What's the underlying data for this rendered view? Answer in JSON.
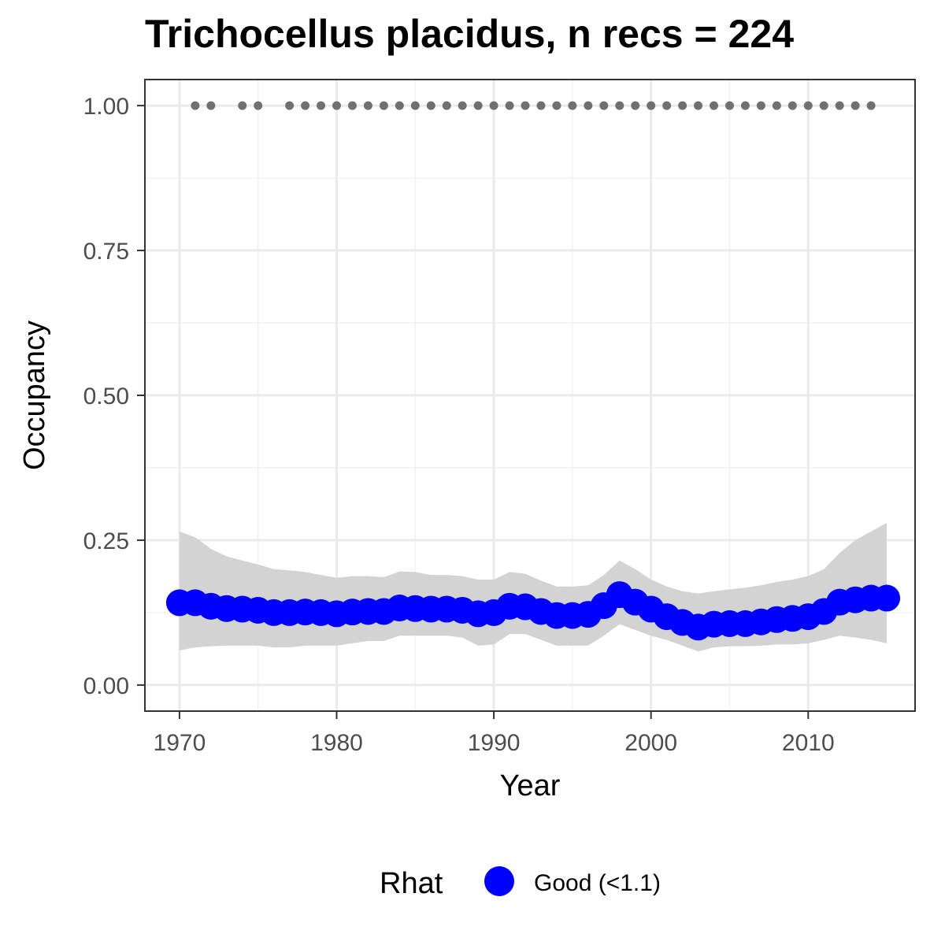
{
  "chart_data": {
    "type": "line",
    "title": "Trichocellus placidus, n recs = 224",
    "xlabel": "Year",
    "ylabel": "Occupancy",
    "xlim": [
      1967.8,
      2016.8
    ],
    "ylim": [
      -0.045,
      1.045
    ],
    "x_ticks": [
      1970,
      1980,
      1990,
      2000,
      2010
    ],
    "y_ticks": [
      0.0,
      0.25,
      0.5,
      0.75,
      1.0
    ],
    "y_tick_labels": [
      "0.00",
      "0.25",
      "0.50",
      "0.75",
      "1.00"
    ],
    "grid": true,
    "series": [
      {
        "name": "Good (<1.1)",
        "color": "#0000ff",
        "x": [
          1970,
          1971,
          1972,
          1973,
          1974,
          1975,
          1976,
          1977,
          1978,
          1979,
          1980,
          1981,
          1982,
          1983,
          1984,
          1985,
          1986,
          1987,
          1988,
          1989,
          1990,
          1991,
          1992,
          1993,
          1994,
          1995,
          1996,
          1997,
          1998,
          1999,
          2000,
          2001,
          2002,
          2003,
          2004,
          2005,
          2006,
          2007,
          2008,
          2009,
          2010,
          2011,
          2012,
          2013,
          2014,
          2015
        ],
        "y": [
          0.142,
          0.142,
          0.136,
          0.132,
          0.131,
          0.129,
          0.125,
          0.125,
          0.126,
          0.125,
          0.123,
          0.126,
          0.127,
          0.127,
          0.133,
          0.132,
          0.131,
          0.131,
          0.129,
          0.123,
          0.125,
          0.136,
          0.135,
          0.127,
          0.12,
          0.12,
          0.122,
          0.137,
          0.156,
          0.143,
          0.131,
          0.118,
          0.108,
          0.1,
          0.105,
          0.106,
          0.106,
          0.109,
          0.113,
          0.115,
          0.118,
          0.127,
          0.143,
          0.147,
          0.15,
          0.15
        ],
        "lower": [
          0.06,
          0.065,
          0.067,
          0.068,
          0.068,
          0.068,
          0.065,
          0.065,
          0.068,
          0.068,
          0.068,
          0.072,
          0.076,
          0.076,
          0.085,
          0.085,
          0.085,
          0.085,
          0.082,
          0.068,
          0.07,
          0.088,
          0.088,
          0.078,
          0.068,
          0.068,
          0.068,
          0.085,
          0.105,
          0.095,
          0.085,
          0.078,
          0.068,
          0.058,
          0.065,
          0.067,
          0.067,
          0.068,
          0.07,
          0.07,
          0.072,
          0.078,
          0.085,
          0.082,
          0.078,
          0.072
        ],
        "upper": [
          0.265,
          0.255,
          0.235,
          0.222,
          0.215,
          0.208,
          0.2,
          0.198,
          0.195,
          0.19,
          0.185,
          0.188,
          0.188,
          0.186,
          0.196,
          0.195,
          0.19,
          0.19,
          0.188,
          0.182,
          0.182,
          0.195,
          0.192,
          0.18,
          0.17,
          0.17,
          0.172,
          0.19,
          0.215,
          0.2,
          0.182,
          0.17,
          0.162,
          0.158,
          0.162,
          0.165,
          0.168,
          0.172,
          0.178,
          0.182,
          0.188,
          0.2,
          0.228,
          0.25,
          0.265,
          0.28
        ]
      }
    ],
    "records": {
      "color": "#707070",
      "years": [
        1971,
        1972,
        1974,
        1975,
        1977,
        1978,
        1979,
        1980,
        1981,
        1982,
        1983,
        1984,
        1985,
        1986,
        1987,
        1988,
        1989,
        1990,
        1991,
        1992,
        1993,
        1994,
        1995,
        1996,
        1997,
        1998,
        1999,
        2000,
        2001,
        2002,
        2003,
        2004,
        2005,
        2006,
        2007,
        2008,
        2009,
        2010,
        2011,
        2012,
        2013,
        2014
      ],
      "value": 1.0
    },
    "ribbon_color": "#d3d3d3",
    "legend": {
      "title": "Rhat",
      "entries": [
        "Good (<1.1)"
      ],
      "position": "bottom"
    }
  }
}
